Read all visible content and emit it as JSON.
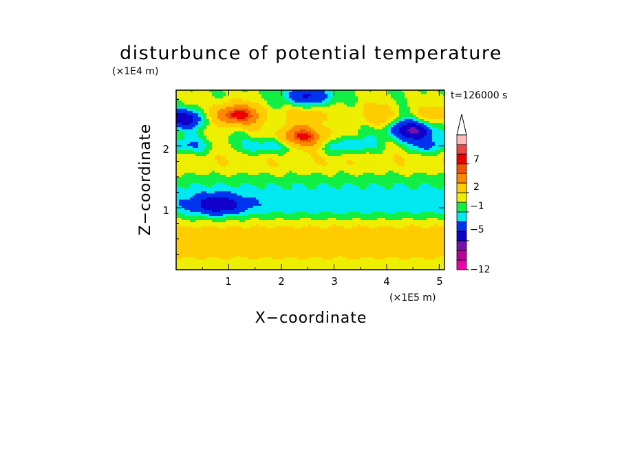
{
  "chart_data": {
    "type": "heatmap",
    "title": "disturbunce of potential temperature",
    "xlabel": "X−coordinate",
    "ylabel": "Z−coordinate",
    "x_unit": "(×1E5 m)",
    "y_unit": "(×1E4 m)",
    "time_label": "t=126000 s",
    "xlim": [
      0,
      5.1
    ],
    "ylim": [
      0,
      2.9
    ],
    "x_ticks": [
      "1",
      "2",
      "3",
      "4",
      "5"
    ],
    "y_ticks": [
      "1",
      "2"
    ],
    "colorbar": {
      "tick_labels": [
        "7",
        "2",
        "−1",
        "−5",
        "−12"
      ],
      "level_count": 14,
      "extend": "max",
      "colors": [
        "#ee00aa",
        "#bb0099",
        "#7711aa",
        "#1100cc",
        "#0033ee",
        "#00e8f0",
        "#11ee44",
        "#eeee00",
        "#ffcc00",
        "#ff8800",
        "#ee5500",
        "#ee0000",
        "#ee4444",
        "#ffbbbb"
      ]
    },
    "features": [
      {
        "label": "positive",
        "x": 2.4,
        "z": 2.15,
        "value": 7
      },
      {
        "label": "negative",
        "x": 2.5,
        "z": 2.8,
        "value": -5
      },
      {
        "label": "negative",
        "x": 0.1,
        "z": 2.45,
        "value": -8
      },
      {
        "label": "negative",
        "x": 4.5,
        "z": 2.25,
        "value": -7
      },
      {
        "label": "negative",
        "x": 0.8,
        "z": 1.05,
        "value": -5
      },
      {
        "label": "positive",
        "x": 1.1,
        "z": 2.5,
        "value": 6
      }
    ]
  }
}
